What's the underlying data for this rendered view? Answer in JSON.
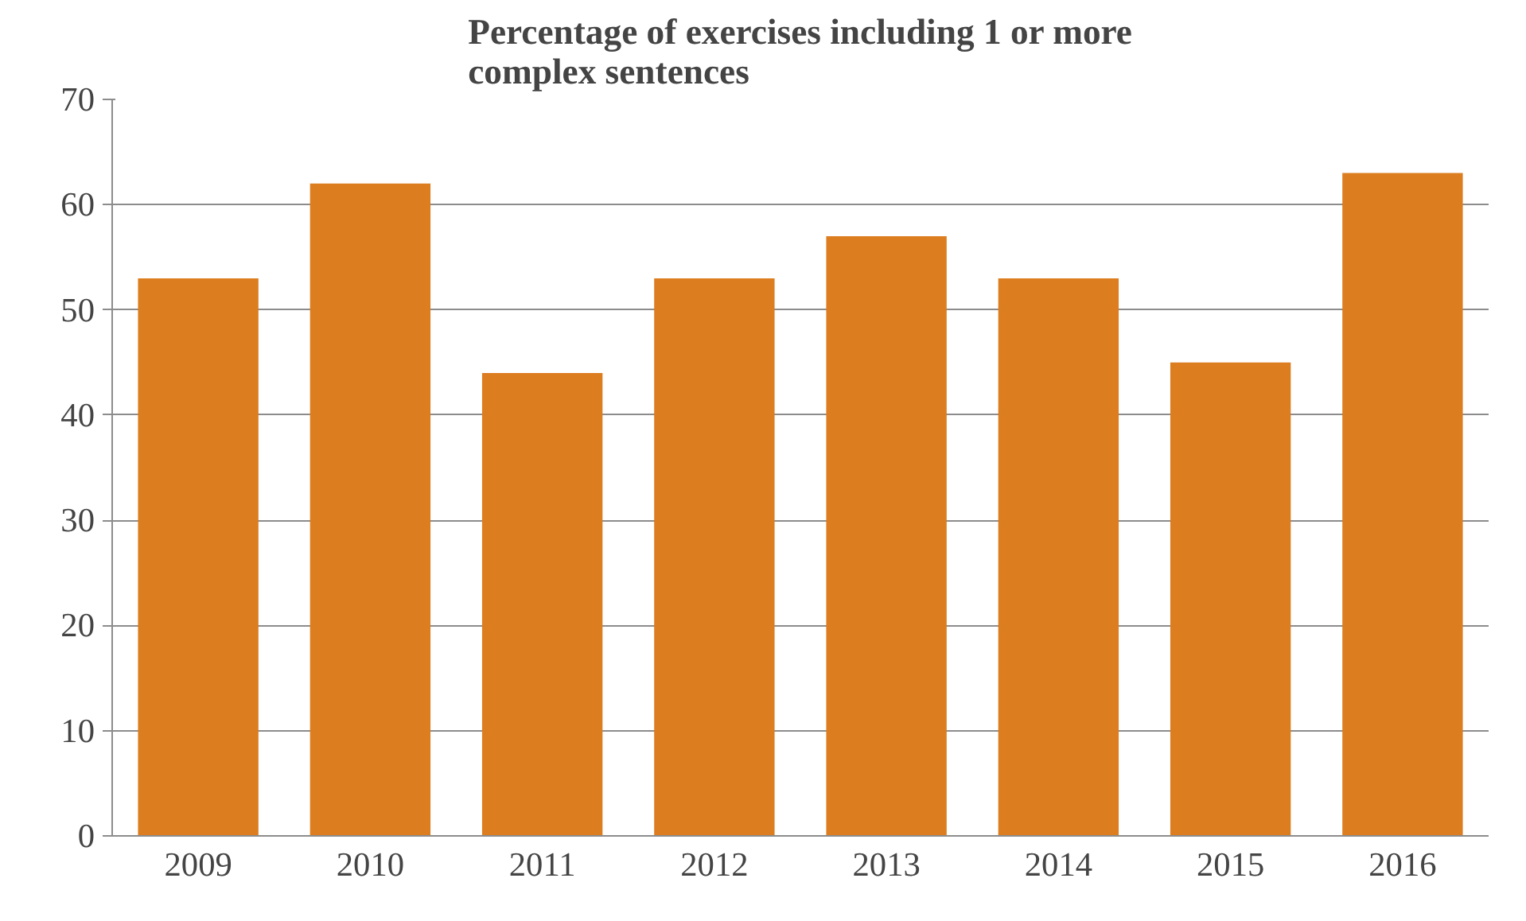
{
  "chart_data": {
    "type": "bar",
    "title": "Percentage of exercises including 1 or more complex sentences",
    "categories": [
      "2009",
      "2010",
      "2011",
      "2012",
      "2013",
      "2014",
      "2015",
      "2016"
    ],
    "values": [
      53,
      62,
      44,
      53,
      57,
      53,
      45,
      63
    ],
    "color": "#dc7d1f",
    "ylim": [
      0,
      70
    ],
    "yticks": [
      0,
      10,
      20,
      30,
      40,
      50,
      60,
      70
    ],
    "grid": "y"
  }
}
